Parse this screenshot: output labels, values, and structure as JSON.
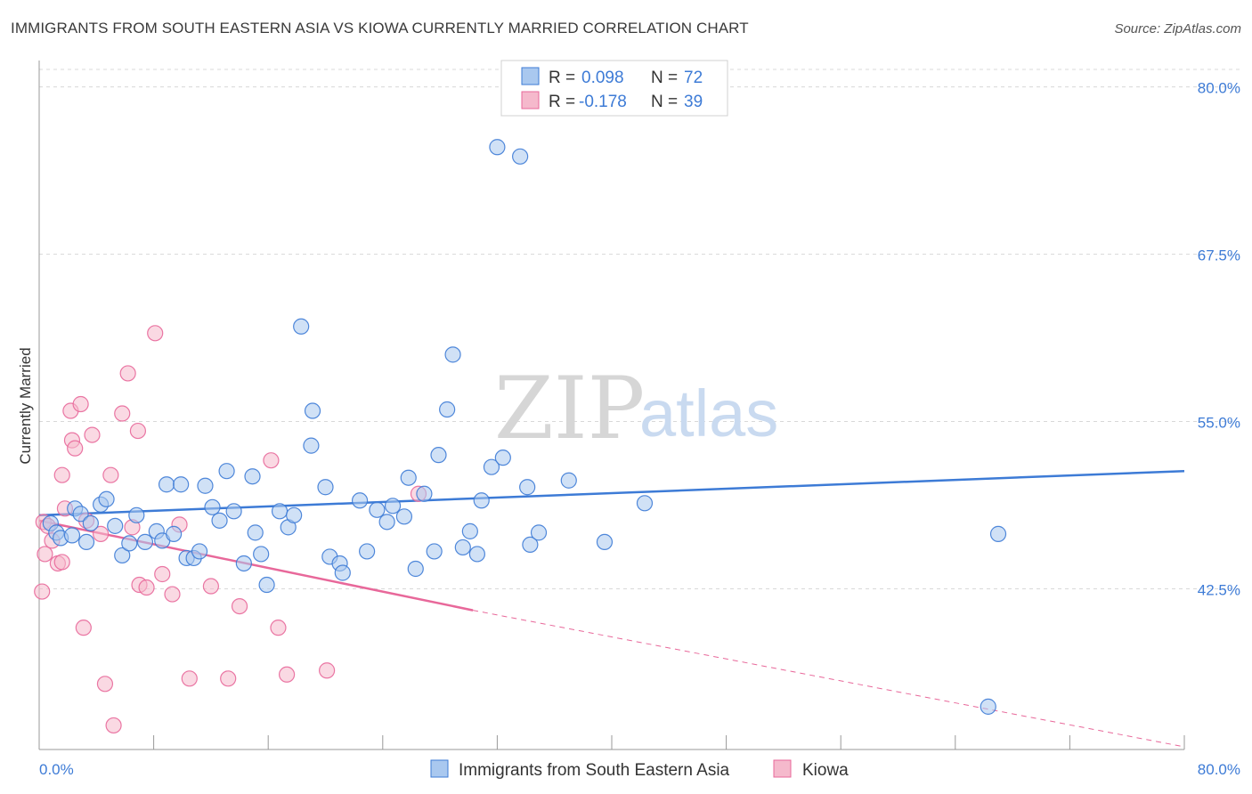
{
  "title": "IMMIGRANTS FROM SOUTH EASTERN ASIA VS KIOWA CURRENTLY MARRIED CORRELATION CHART",
  "source": "Source: ZipAtlas.com",
  "watermark": {
    "zip": "ZIP",
    "atlas": "atlas"
  },
  "colors": {
    "blue": "#3d7bd6",
    "blue_fill": "#a9c8ef",
    "pink": "#e8689a",
    "pink_fill": "#f5b9cc",
    "grid": "#d8d8d8",
    "axis": "#888888"
  },
  "chart_data": {
    "type": "scatter",
    "title": "IMMIGRANTS FROM SOUTH EASTERN ASIA VS KIOWA CURRENTLY MARRIED CORRELATION CHART",
    "xlabel": "",
    "ylabel": "Currently Married",
    "xlim": [
      0,
      80
    ],
    "ylim": [
      30.5,
      82.5
    ],
    "x_tick_labels": [
      "0.0%",
      "80.0%"
    ],
    "y_ticks": [
      42.5,
      55.0,
      67.5,
      80.0
    ],
    "y_tick_labels": [
      "42.5%",
      "55.0%",
      "67.5%",
      "80.0%"
    ],
    "grid": "horizontal dashed",
    "legend_position": "top-center",
    "legend": [
      {
        "series": "Immigrants from South Eastern Asia",
        "r_label": "R =",
        "r": "0.098",
        "n_label": "N =",
        "n": "72"
      },
      {
        "series": "Kiowa",
        "r_label": "R =",
        "r": "-0.178",
        "n_label": "N =",
        "n": "39"
      }
    ],
    "series": [
      {
        "name": "Immigrants from South Eastern Asia",
        "color": "#3d7bd6",
        "trend": {
          "x": [
            0,
            80
          ],
          "y": [
            48.0,
            51.3
          ],
          "style": "solid"
        },
        "points": [
          [
            0.8,
            47.4
          ],
          [
            1.2,
            46.7
          ],
          [
            1.5,
            46.3
          ],
          [
            2.3,
            46.5
          ],
          [
            2.5,
            48.5
          ],
          [
            2.9,
            48.1
          ],
          [
            3.3,
            46.0
          ],
          [
            3.6,
            47.4
          ],
          [
            4.3,
            48.8
          ],
          [
            4.7,
            49.2
          ],
          [
            5.3,
            47.2
          ],
          [
            5.8,
            45.0
          ],
          [
            6.3,
            45.9
          ],
          [
            6.8,
            48.0
          ],
          [
            7.4,
            46.0
          ],
          [
            8.2,
            46.8
          ],
          [
            8.6,
            46.1
          ],
          [
            8.9,
            50.3
          ],
          [
            9.4,
            46.6
          ],
          [
            9.9,
            50.3
          ],
          [
            10.3,
            44.8
          ],
          [
            10.8,
            44.8
          ],
          [
            11.2,
            45.3
          ],
          [
            11.6,
            50.2
          ],
          [
            12.1,
            48.6
          ],
          [
            12.6,
            47.6
          ],
          [
            13.1,
            51.3
          ],
          [
            13.6,
            48.3
          ],
          [
            14.3,
            44.4
          ],
          [
            14.9,
            50.9
          ],
          [
            15.1,
            46.7
          ],
          [
            15.5,
            45.1
          ],
          [
            15.9,
            42.8
          ],
          [
            16.8,
            48.3
          ],
          [
            17.4,
            47.1
          ],
          [
            17.8,
            48.0
          ],
          [
            18.3,
            62.1
          ],
          [
            19.0,
            53.2
          ],
          [
            19.1,
            55.8
          ],
          [
            20.0,
            50.1
          ],
          [
            20.3,
            44.9
          ],
          [
            21.0,
            44.4
          ],
          [
            21.2,
            43.7
          ],
          [
            22.4,
            49.1
          ],
          [
            22.9,
            45.3
          ],
          [
            23.6,
            48.4
          ],
          [
            24.3,
            47.5
          ],
          [
            24.7,
            48.7
          ],
          [
            25.5,
            47.9
          ],
          [
            25.8,
            50.8
          ],
          [
            26.3,
            44.0
          ],
          [
            26.9,
            49.6
          ],
          [
            27.6,
            45.3
          ],
          [
            27.9,
            52.5
          ],
          [
            28.5,
            55.9
          ],
          [
            28.9,
            60.0
          ],
          [
            29.6,
            45.6
          ],
          [
            30.1,
            46.8
          ],
          [
            30.6,
            45.1
          ],
          [
            30.9,
            49.1
          ],
          [
            31.6,
            51.6
          ],
          [
            32.0,
            75.5
          ],
          [
            32.4,
            52.3
          ],
          [
            33.6,
            74.8
          ],
          [
            34.1,
            50.1
          ],
          [
            34.3,
            45.8
          ],
          [
            34.9,
            46.7
          ],
          [
            37.0,
            50.6
          ],
          [
            39.5,
            46.0
          ],
          [
            42.3,
            48.9
          ],
          [
            67.0,
            46.6
          ],
          [
            66.3,
            33.7
          ]
        ]
      },
      {
        "name": "Kiowa",
        "color": "#e8689a",
        "trend": {
          "x": [
            0,
            30.3
          ],
          "y": [
            47.6,
            40.9
          ],
          "x_dashed_end": 80,
          "y_dashed_end": 30.7,
          "style": "solid then dashed"
        },
        "points": [
          [
            0.2,
            42.3
          ],
          [
            0.3,
            47.5
          ],
          [
            0.4,
            45.1
          ],
          [
            0.6,
            47.2
          ],
          [
            0.9,
            46.1
          ],
          [
            1.3,
            44.4
          ],
          [
            1.6,
            51.0
          ],
          [
            1.8,
            48.5
          ],
          [
            1.6,
            44.5
          ],
          [
            2.2,
            55.8
          ],
          [
            2.3,
            53.6
          ],
          [
            2.5,
            53.0
          ],
          [
            2.9,
            56.3
          ],
          [
            3.1,
            39.6
          ],
          [
            3.3,
            47.6
          ],
          [
            3.7,
            54.0
          ],
          [
            4.3,
            46.6
          ],
          [
            4.6,
            35.4
          ],
          [
            5.0,
            51.0
          ],
          [
            5.2,
            32.3
          ],
          [
            5.8,
            55.6
          ],
          [
            6.2,
            58.6
          ],
          [
            6.5,
            47.1
          ],
          [
            6.9,
            54.3
          ],
          [
            7.0,
            42.8
          ],
          [
            7.5,
            42.6
          ],
          [
            8.1,
            61.6
          ],
          [
            8.6,
            43.6
          ],
          [
            9.3,
            42.1
          ],
          [
            9.8,
            47.3
          ],
          [
            10.5,
            35.8
          ],
          [
            12.0,
            42.7
          ],
          [
            13.2,
            35.8
          ],
          [
            14.0,
            41.2
          ],
          [
            16.2,
            52.1
          ],
          [
            16.7,
            39.6
          ],
          [
            17.3,
            36.1
          ],
          [
            20.1,
            36.4
          ],
          [
            26.5,
            49.6
          ]
        ]
      }
    ]
  }
}
